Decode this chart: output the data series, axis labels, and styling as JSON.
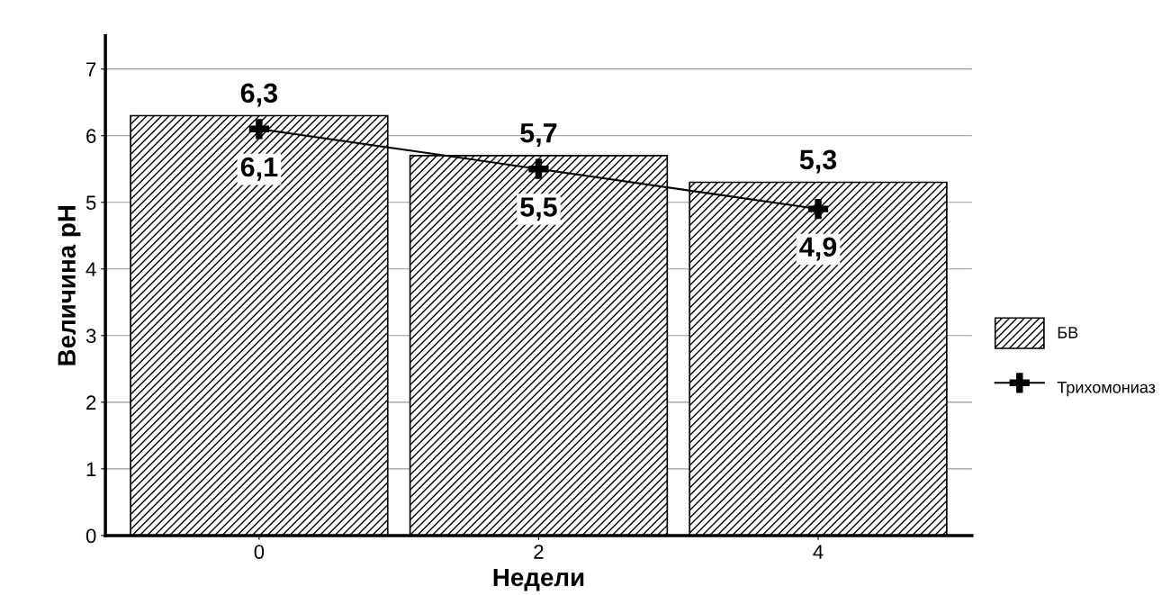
{
  "chart_data": {
    "type": "bar",
    "xlabel": "Недели",
    "ylabel": "Величина pH",
    "categories": [
      "0",
      "2",
      "4"
    ],
    "series": [
      {
        "name": "БВ",
        "color": "#000000",
        "values": [
          6.3,
          5.7,
          5.3
        ],
        "value_labels": [
          "6,3",
          "5,7",
          "5,3"
        ]
      },
      {
        "name": "Трихомониаз",
        "type": "line",
        "color": "#000000",
        "marker": "cross",
        "values": [
          6.1,
          5.5,
          4.9
        ],
        "value_labels": [
          "6,1",
          "5,5",
          "4,9"
        ]
      }
    ],
    "ylim": [
      0,
      7.5
    ],
    "yticks": [
      0,
      1,
      2,
      3,
      4,
      5,
      6,
      7
    ],
    "grid": "y",
    "legend": "right"
  }
}
